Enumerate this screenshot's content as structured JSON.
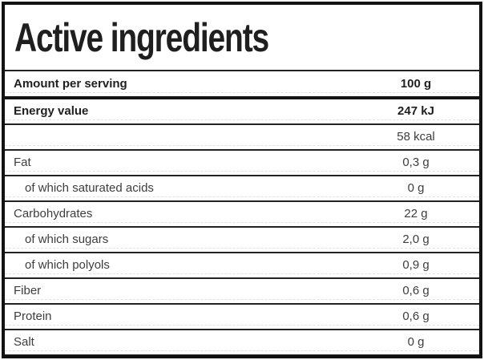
{
  "title": "Active ingredients",
  "table": {
    "header": {
      "label": "Amount per serving",
      "value": "100 g"
    },
    "rows": [
      {
        "label": "Energy value",
        "value": "247 kJ",
        "bold": true,
        "indent": false
      },
      {
        "label": "",
        "value": "58 kcal",
        "bold": false,
        "indent": false
      },
      {
        "label": "Fat",
        "value": "0,3 g",
        "bold": false,
        "indent": false
      },
      {
        "label": "of which saturated acids",
        "value": "0 g",
        "bold": false,
        "indent": true
      },
      {
        "label": "Carbohydrates",
        "value": "22 g",
        "bold": false,
        "indent": false
      },
      {
        "label": "of which sugars",
        "value": "2,0 g",
        "bold": false,
        "indent": true
      },
      {
        "label": "of which polyols",
        "value": "0,9 g",
        "bold": false,
        "indent": true
      },
      {
        "label": "Fiber",
        "value": "0,6 g",
        "bold": false,
        "indent": false
      },
      {
        "label": "Protein",
        "value": "0,6 g",
        "bold": false,
        "indent": false
      },
      {
        "label": "Salt",
        "value": "0 g",
        "bold": false,
        "indent": false
      }
    ]
  },
  "colors": {
    "background": "#ffffff",
    "border": "#121212",
    "rule": "#222222",
    "rule_heavy": "#141414",
    "dashed": "#e2e2e2",
    "text": "#3d3d3d",
    "text_bold": "#1f1f1f"
  }
}
